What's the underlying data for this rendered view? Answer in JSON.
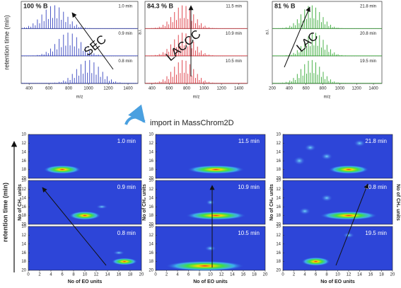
{
  "top_panels": [
    {
      "label": "100 % B",
      "method": "SEC",
      "times": [
        "1.0 min",
        "0.9 min",
        "0.8 min"
      ],
      "xticks": [
        400,
        600,
        800,
        1000,
        1200,
        1400
      ],
      "xlim": [
        320,
        1500
      ],
      "color": "#1f2fb8"
    },
    {
      "label": "84.3 % B",
      "method": "LACCC",
      "times": [
        "11.5 min",
        "10.9 min",
        "10.5 min"
      ],
      "xticks": [
        400,
        600,
        800,
        1000,
        1200,
        1400
      ],
      "xlim": [
        320,
        1500
      ],
      "color": "#d8202a"
    },
    {
      "label": "81 % B",
      "method": "LAC",
      "times": [
        "21.8 min",
        "20.8 min",
        "19.5 min"
      ],
      "xticks": [
        200,
        400,
        600,
        800,
        1000,
        1200,
        1400
      ],
      "xlim": [
        200,
        1500
      ],
      "color": "#20a020"
    }
  ],
  "top_x_label": "m/z",
  "top_y_label": "retention time (min)",
  "ai_label": "a.i.",
  "import_label": "import in MassChrom2D",
  "bottom_panels": [
    {
      "times": [
        "1.0 min",
        "0.9 min",
        "0.8 min"
      ]
    },
    {
      "times": [
        "11.5 min",
        "10.9 min",
        "10.5 min"
      ]
    },
    {
      "times": [
        "21.8 min",
        "20.8 min",
        "19.5 min"
      ]
    }
  ],
  "bottom_yticks": [
    10,
    12,
    14,
    16,
    18,
    20
  ],
  "bottom_ylim": [
    10,
    20
  ],
  "bottom_xticks": [
    0,
    2,
    4,
    6,
    8,
    10,
    12,
    14,
    16,
    18,
    20
  ],
  "bottom_xlim": [
    0,
    20
  ],
  "bottom_x_label": "No of EO units",
  "bottom_y_label": "No of CH₂ units",
  "bottom_left_label": "retention time (min)"
}
